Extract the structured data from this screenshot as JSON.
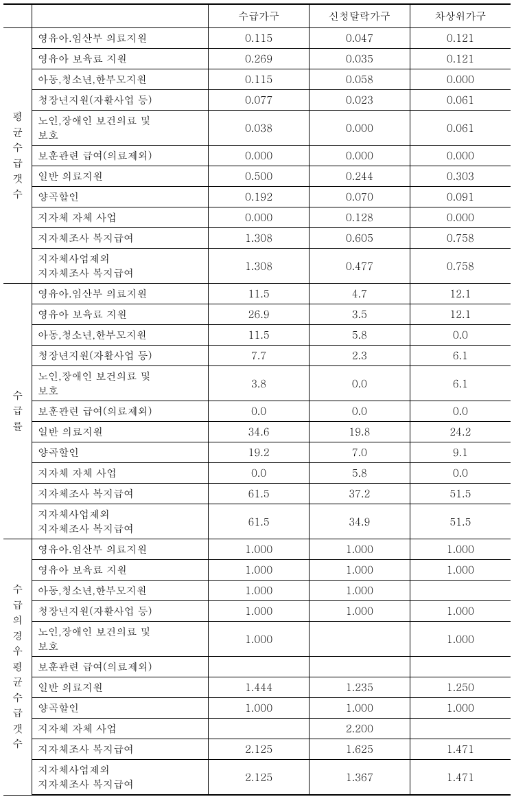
{
  "headers": {
    "col1": "",
    "col2": "",
    "col3": "수급가구",
    "col4": "신청탈락가구",
    "col5": "차상위가구"
  },
  "sections": [
    {
      "label": "평균수급갯수",
      "labelChars": [
        "평",
        "균",
        "수",
        "급",
        "갯",
        "수"
      ],
      "rows": [
        {
          "item": "영유아.임산부   의료지원",
          "v1": "0.115",
          "v2": "0.047",
          "v3": "0.121",
          "ml": false
        },
        {
          "item": "영유아 보육료 지원",
          "v1": "0.269",
          "v2": "0.035",
          "v3": "0.121",
          "ml": false
        },
        {
          "item": "아동,청소년,한부모지원",
          "v1": "0.115",
          "v2": "0.058",
          "v3": "0.000",
          "ml": false
        },
        {
          "item": "청장년지원(자활사업 등)",
          "v1": "0.077",
          "v2": "0.023",
          "v3": "0.061",
          "ml": false
        },
        {
          "item": "노인,장애인 보건의료 및\n보호",
          "v1": "0.038",
          "v2": "0.000",
          "v3": "0.061",
          "ml": true
        },
        {
          "item": "보훈관련 급여(의료제외)",
          "v1": "0.000",
          "v2": "0.000",
          "v3": "0.000",
          "ml": false
        },
        {
          "item": "일반 의료지원",
          "v1": "0.500",
          "v2": "0.244",
          "v3": "0.303",
          "ml": false
        },
        {
          "item": "양곡할인",
          "v1": "0.192",
          "v2": "0.070",
          "v3": "0.091",
          "ml": false
        },
        {
          "item": "지자체 자체 사업",
          "v1": "0.000",
          "v2": "0.128",
          "v3": "0.000",
          "ml": false
        },
        {
          "item": "지자체조사 복지급여",
          "v1": "1.308",
          "v2": "0.605",
          "v3": "0.758",
          "ml": false
        },
        {
          "item": "지자체사업제외\n지자체조사   복지급여",
          "v1": "1.308",
          "v2": "0.477",
          "v3": "0.758",
          "ml": true
        }
      ]
    },
    {
      "label": "수급률",
      "labelChars": [
        "수",
        "급",
        "률"
      ],
      "rows": [
        {
          "item": "영유아.임산부   의료지원",
          "v1": "11.5",
          "v2": "4.7",
          "v3": "12.1",
          "ml": false
        },
        {
          "item": "영유아 보육료 지원",
          "v1": "26.9",
          "v2": "3.5",
          "v3": "12.1",
          "ml": false
        },
        {
          "item": "아동,청소년,한부모지원",
          "v1": "11.5",
          "v2": "5.8",
          "v3": "0.0",
          "ml": false
        },
        {
          "item": "청장년지원(자활사업 등)",
          "v1": "7.7",
          "v2": "2.3",
          "v3": "6.1",
          "ml": false
        },
        {
          "item": "노인,장애인 보건의료 및\n보호",
          "v1": "3.8",
          "v2": "0.0",
          "v3": "6.1",
          "ml": true
        },
        {
          "item": "보훈관련 급여(의료제외)",
          "v1": "0.0",
          "v2": "0.0",
          "v3": "0.0",
          "ml": false
        },
        {
          "item": "일반 의료지원",
          "v1": "34.6",
          "v2": "19.8",
          "v3": "24.2",
          "ml": false
        },
        {
          "item": "양곡할인",
          "v1": "19.2",
          "v2": "7.0",
          "v3": "9.1",
          "ml": false
        },
        {
          "item": "지자체 자체 사업",
          "v1": "0.0",
          "v2": "5.8",
          "v3": "0.0",
          "ml": false
        },
        {
          "item": "지자체조사 복지급여",
          "v1": "61.5",
          "v2": "37.2",
          "v3": "51.5",
          "ml": false
        },
        {
          "item": "지자체사업제외\n지자체조사   복지급여",
          "v1": "61.5",
          "v2": "34.9",
          "v3": "51.5",
          "ml": true
        }
      ]
    },
    {
      "label": "수급의경우평균수급갯수",
      "labelChars": [
        "수",
        "급",
        "의",
        "경",
        "우",
        "평",
        "균",
        "수",
        "급",
        "갯",
        "수"
      ],
      "rows": [
        {
          "item": "영유아.임산부   의료지원",
          "v1": "1.000",
          "v2": "1.000",
          "v3": "1.000",
          "ml": false
        },
        {
          "item": "영유아 보육료 지원",
          "v1": "1.000",
          "v2": "1.000",
          "v3": "1.000",
          "ml": false
        },
        {
          "item": "아동,청소년,한부모지원",
          "v1": "1.000",
          "v2": "1.000",
          "v3": "",
          "ml": false
        },
        {
          "item": "청장년지원(자활사업 등)",
          "v1": "1.000",
          "v2": "1.000",
          "v3": "1.000",
          "ml": false
        },
        {
          "item": "노인,장애인 보건의료 및\n보호",
          "v1": "1.000",
          "v2": "",
          "v3": "1.000",
          "ml": true
        },
        {
          "item": "보훈관련 급여(의료제외)",
          "v1": "",
          "v2": "",
          "v3": "",
          "ml": false
        },
        {
          "item": "일반 의료지원",
          "v1": "1.444",
          "v2": "1.235",
          "v3": "1.250",
          "ml": false
        },
        {
          "item": "양곡할인",
          "v1": "1.000",
          "v2": "1.000",
          "v3": "1.000",
          "ml": false
        },
        {
          "item": "지자체 자체 사업",
          "v1": "",
          "v2": "2.200",
          "v3": "",
          "ml": false
        },
        {
          "item": "지자체조사 복지급여",
          "v1": "2.125",
          "v2": "1.625",
          "v3": "1.471",
          "ml": false
        },
        {
          "item": "지자체사업제외\n지자체조사   복지급여",
          "v1": "2.125",
          "v2": "1.367",
          "v3": "1.471",
          "ml": true
        }
      ]
    }
  ]
}
